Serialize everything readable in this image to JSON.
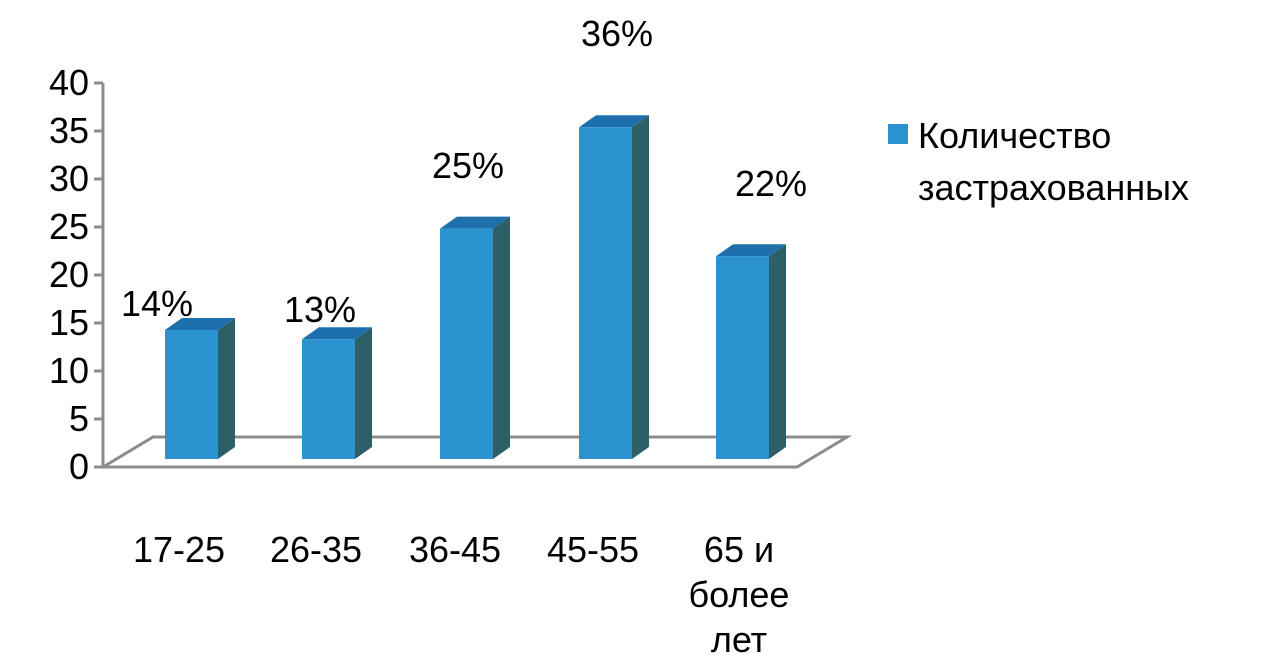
{
  "chart_data": {
    "type": "bar",
    "categories": [
      "17-25",
      "26-35",
      "36-45",
      "45-55",
      "65 и более лет"
    ],
    "category_lines": [
      [
        "17-25"
      ],
      [
        "26-35"
      ],
      [
        "36-45"
      ],
      [
        "45-55"
      ],
      [
        "65 и",
        "более",
        "лет"
      ]
    ],
    "series": [
      {
        "name": "Количество застрахованных",
        "name_lines": [
          "Количество",
          "застрахованных"
        ],
        "values": [
          14,
          13,
          25,
          36,
          22
        ],
        "labels": [
          "14%",
          "13%",
          "25%",
          "36%",
          "22%"
        ]
      }
    ],
    "yticks": [
      "0",
      "5",
      "10",
      "15",
      "20",
      "25",
      "30",
      "35",
      "40"
    ],
    "ylim": [
      0,
      40
    ],
    "legend_position": "right",
    "grid": false,
    "colors": {
      "front": "#2b93cf",
      "top": "#1e70ad",
      "side": "#2c5f66",
      "floor": "#8c8c8c"
    }
  }
}
